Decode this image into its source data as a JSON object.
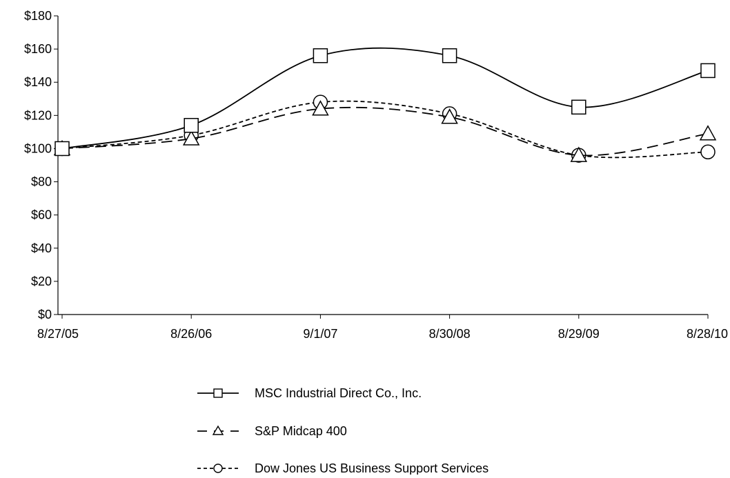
{
  "chart_data": {
    "type": "line",
    "title": "",
    "xlabel": "",
    "ylabel": "",
    "categories": [
      "8/27/05",
      "8/26/06",
      "9/1/07",
      "8/30/08",
      "8/29/09",
      "8/28/10"
    ],
    "y_ticks": [
      "$0",
      "$20",
      "$40",
      "$60",
      "$80",
      "$100",
      "$120",
      "$140",
      "$160",
      "$180"
    ],
    "ylim": [
      0,
      180
    ],
    "grid": false,
    "legend_position": "bottom",
    "series": [
      {
        "name": "MSC Industrial Direct Co., Inc.",
        "values": [
          100,
          114,
          156,
          156,
          125,
          147
        ],
        "marker": "square",
        "dash": "solid",
        "color": "#000000"
      },
      {
        "name": "S&P Midcap 400",
        "values": [
          100,
          106,
          124,
          119,
          96,
          109
        ],
        "marker": "triangle",
        "dash": "long-dash",
        "color": "#000000"
      },
      {
        "name": "Dow Jones US Business Support Services",
        "values": [
          100,
          108,
          128,
          121,
          96,
          98
        ],
        "marker": "circle",
        "dash": "short-dash",
        "color": "#000000"
      }
    ]
  }
}
